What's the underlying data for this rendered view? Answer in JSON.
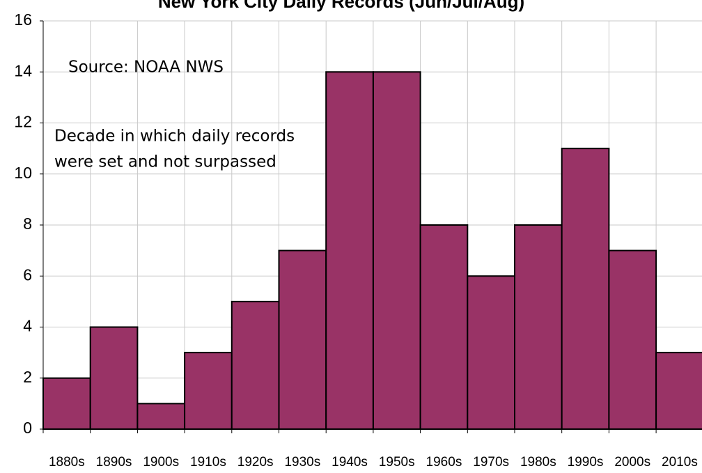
{
  "chart_data": {
    "type": "bar",
    "title": "New York City Daily Records (Jun/Jul/Aug)",
    "annotations": [
      "Source: NOAA NWS",
      "Decade in which daily records",
      "were set and not surpassed"
    ],
    "categories": [
      "1880s",
      "1890s",
      "1900s",
      "1910s",
      "1920s",
      "1930s",
      "1940s",
      "1950s",
      "1960s",
      "1970s",
      "1980s",
      "1990s",
      "2000s",
      "2010s"
    ],
    "values": [
      2,
      4,
      1,
      3,
      5,
      7,
      14,
      14,
      8,
      6,
      8,
      11,
      7,
      3
    ],
    "color": "#993366",
    "ylim": [
      0,
      16
    ],
    "yticks": [
      0,
      2,
      4,
      6,
      8,
      10,
      12,
      14,
      16
    ],
    "grid": true
  }
}
